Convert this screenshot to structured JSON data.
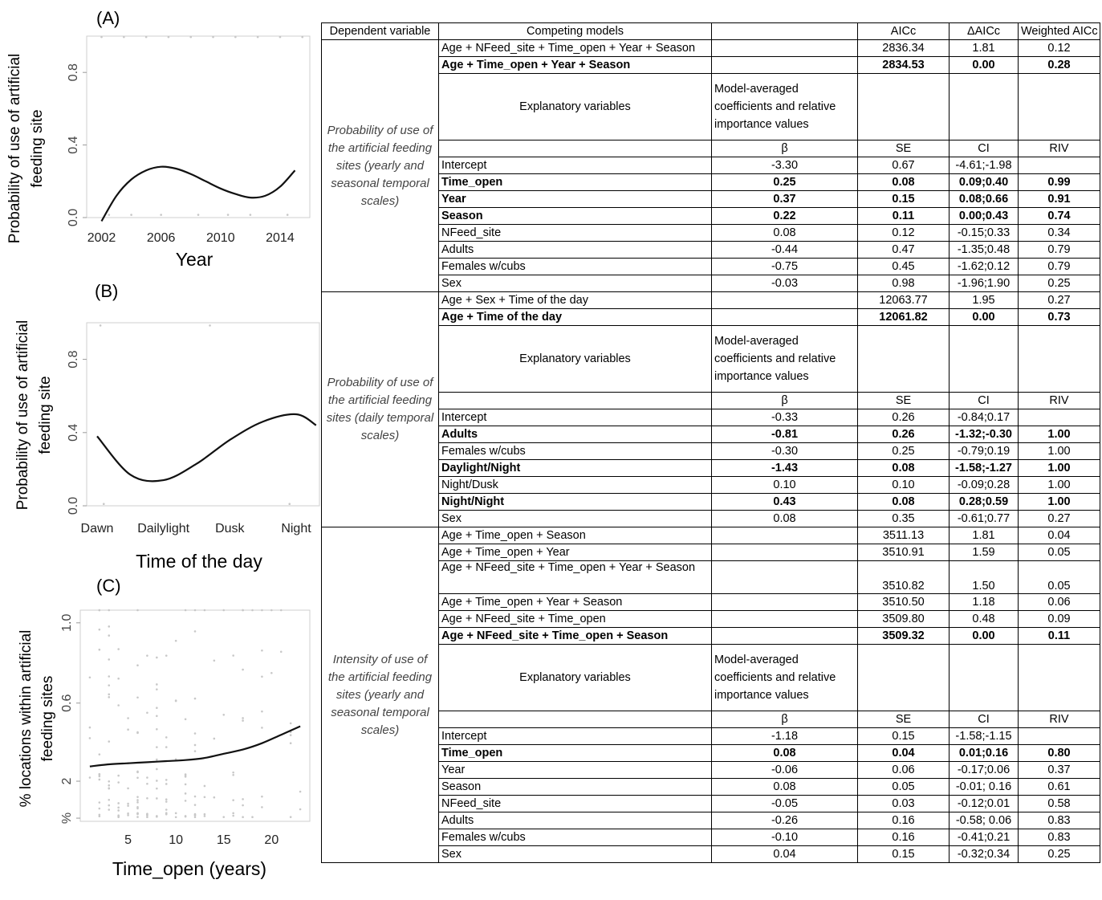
{
  "panels": [
    {
      "label": "(A)",
      "ylabel_lines": [
        "Probability of use of artificial",
        "feeding site"
      ],
      "xlabel": "Year",
      "xticks": [
        "2002",
        "2006",
        "2010",
        "2014"
      ],
      "yticks": [
        "0.0",
        "0.4",
        "0.8"
      ]
    },
    {
      "label": "(B)",
      "ylabel_lines": [
        "Probability of use of artificial",
        "feeding site"
      ],
      "xlabel": "Time of the day",
      "xticks": [
        "Dawn",
        "Dailylight",
        "Dusk",
        "Night"
      ],
      "yticks": [
        "0.0",
        "0.4",
        "0.8"
      ]
    },
    {
      "label": "(C)",
      "ylabel_lines": [
        "% locations within artificial",
        "feeding sites"
      ],
      "xlabel": "Time_open  (years)",
      "xticks": [
        "5",
        "10",
        "15",
        "20"
      ],
      "yticks": [
        "%",
        "2",
        "0.6",
        "1.0"
      ]
    }
  ],
  "chart_data": [
    {
      "type": "line",
      "title": "(A)",
      "xlabel": "Year",
      "ylabel": "Probability of use of artificial feeding site",
      "xlim": [
        2001,
        2016
      ],
      "ylim": [
        0.0,
        1.0
      ],
      "x": [
        2002,
        2003,
        2004,
        2005,
        2006,
        2007,
        2008,
        2009,
        2010,
        2011,
        2012,
        2013,
        2014,
        2015
      ],
      "series": [
        {
          "values": [
            -0.02,
            0.12,
            0.21,
            0.26,
            0.28,
            0.27,
            0.24,
            0.2,
            0.16,
            0.13,
            0.11,
            0.12,
            0.17,
            0.26
          ]
        }
      ]
    },
    {
      "type": "line",
      "title": "(B)",
      "xlabel": "Time of the day",
      "ylabel": "Probability of use of artificial feeding site",
      "categories": [
        "Dawn",
        "Dailylight",
        "Dusk",
        "Night"
      ],
      "ylim": [
        0.0,
        1.0
      ],
      "x": [
        1.0,
        1.5,
        2.0,
        2.5,
        3.0,
        3.5,
        4.0,
        4.3
      ],
      "series": [
        {
          "values": [
            0.38,
            0.17,
            0.14,
            0.23,
            0.36,
            0.46,
            0.5,
            0.44
          ]
        }
      ]
    },
    {
      "type": "line",
      "title": "(C)",
      "xlabel": "Time_open  (years)",
      "ylabel": "% locations within artificial feeding sites",
      "xlim": [
        0,
        24
      ],
      "ylim": [
        0.0,
        1.0
      ],
      "x": [
        1,
        3,
        5,
        7,
        9,
        11,
        13,
        15,
        17,
        19,
        21,
        23
      ],
      "series": [
        {
          "values": [
            0.26,
            0.27,
            0.275,
            0.28,
            0.285,
            0.29,
            0.3,
            0.32,
            0.34,
            0.37,
            0.41,
            0.45
          ]
        }
      ]
    }
  ],
  "table": {
    "header": [
      "Dependent variable",
      "Competing models",
      "",
      "AICc",
      "ΔAICc",
      "Weighted AICc"
    ],
    "sub_header_1": "Explanatory variables",
    "sub_header_2": "Model-averaged coefficients and relative importance values",
    "coef_header": [
      "β",
      "SE",
      "CI",
      "RIV"
    ],
    "groups": [
      {
        "dependent": "Probability of use of the artificial feeding sites (yearly and seasonal temporal scales)",
        "models": [
          {
            "name": "Age + NFeed_site + Time_open + Year + Season",
            "aicc": "2836.34",
            "daicc": "1.81",
            "w": "0.12",
            "bold": false,
            "tall": false
          },
          {
            "name": "Age + Time_open + Year + Season",
            "aicc": "2834.53",
            "daicc": "0.00",
            "w": "0.28",
            "bold": true,
            "tall": false
          }
        ],
        "coefs": [
          {
            "name": "Intercept",
            "beta": "-3.30",
            "se": "0.67",
            "ci": "-4.61;-1.98",
            "riv": "",
            "bold": false
          },
          {
            "name": "Time_open",
            "beta": "0.25",
            "se": "0.08",
            "ci": "0.09;0.40",
            "riv": "0.99",
            "bold": true
          },
          {
            "name": "Year",
            "beta": "0.37",
            "se": "0.15",
            "ci": "0.08;0.66",
            "riv": "0.91",
            "bold": true
          },
          {
            "name": "Season",
            "beta": "0.22",
            "se": "0.11",
            "ci": "0.00;0.43",
            "riv": "0.74",
            "bold": true
          },
          {
            "name": "NFeed_site",
            "beta": "0.08",
            "se": "0.12",
            "ci": "-0.15;0.33",
            "riv": "0.34",
            "bold": false
          },
          {
            "name": "Adults",
            "beta": "-0.44",
            "se": "0.47",
            "ci": "-1.35;0.48",
            "riv": "0.79",
            "bold": false
          },
          {
            "name": "Females w/cubs",
            "beta": "-0.75",
            "se": "0.45",
            "ci": "-1.62;0.12",
            "riv": "0.79",
            "bold": false
          },
          {
            "name": "Sex",
            "beta": "-0.03",
            "se": "0.98",
            "ci": "-1.96;1.90",
            "riv": "0.25",
            "bold": false
          }
        ]
      },
      {
        "dependent": "Probability of use of the artificial feeding sites (daily temporal scales)",
        "models": [
          {
            "name": "Age + Sex + Time of the day",
            "aicc": "12063.77",
            "daicc": "1.95",
            "w": "0.27",
            "bold": false,
            "tall": false
          },
          {
            "name": "Age + Time of the day",
            "aicc": "12061.82",
            "daicc": "0.00",
            "w": "0.73",
            "bold": true,
            "tall": false
          }
        ],
        "coefs": [
          {
            "name": "Intercept",
            "beta": "-0.33",
            "se": "0.26",
            "ci": "-0.84;0.17",
            "riv": "",
            "bold": false
          },
          {
            "name": "Adults",
            "beta": "-0.81",
            "se": "0.26",
            "ci": "-1.32;-0.30",
            "riv": "1.00",
            "bold": true
          },
          {
            "name": "Females w/cubs",
            "beta": "-0.30",
            "se": "0.25",
            "ci": "-0.79;0.19",
            "riv": "1.00",
            "bold": false
          },
          {
            "name": "Daylight/Night",
            "beta": "-1.43",
            "se": "0.08",
            "ci": "-1.58;-1.27",
            "riv": "1.00",
            "bold": true
          },
          {
            "name": "Night/Dusk",
            "beta": "0.10",
            "se": "0.10",
            "ci": "-0.09;0.28",
            "riv": "1.00",
            "bold": false
          },
          {
            "name": "Night/Night",
            "beta": "0.43",
            "se": "0.08",
            "ci": "0.28;0.59",
            "riv": "1.00",
            "bold": true
          },
          {
            "name": "Sex",
            "beta": "0.08",
            "se": "0.35",
            "ci": "-0.61;0.77",
            "riv": "0.27",
            "bold": false
          }
        ]
      },
      {
        "dependent": "Intensity of use of the artificial feeding sites (yearly and seasonal temporal scales)",
        "models": [
          {
            "name": "Age + Time_open + Season",
            "aicc": "3511.13",
            "daicc": "1.81",
            "w": "0.04",
            "bold": false,
            "tall": false
          },
          {
            "name": "Age + Time_open + Year",
            "aicc": "3510.91",
            "daicc": "1.59",
            "w": "0.05",
            "bold": false,
            "tall": false
          },
          {
            "name": "Age + NFeed_site + Time_open + Year + Season",
            "aicc": "3510.82",
            "daicc": "1.50",
            "w": "0.05",
            "bold": false,
            "tall": true
          },
          {
            "name": "Age + Time_open + Year + Season",
            "aicc": "3510.50",
            "daicc": "1.18",
            "w": "0.06",
            "bold": false,
            "tall": false
          },
          {
            "name": "Age + NFeed_site + Time_open",
            "aicc": "3509.80",
            "daicc": "0.48",
            "w": "0.09",
            "bold": false,
            "tall": false
          },
          {
            "name": "Age + NFeed_site + Time_open + Season",
            "aicc": "3509.32",
            "daicc": "0.00",
            "w": "0.11",
            "bold": true,
            "tall": false
          }
        ],
        "coefs": [
          {
            "name": "Intercept",
            "beta": "-1.18",
            "se": "0.15",
            "ci": "-1.58;-1.15",
            "riv": "",
            "bold": false
          },
          {
            "name": "Time_open",
            "beta": "0.08",
            "se": "0.04",
            "ci": "0.01;0.16",
            "riv": "0.80",
            "bold": true
          },
          {
            "name": "Year",
            "beta": "-0.06",
            "se": "0.06",
            "ci": "-0.17;0.06",
            "riv": "0.37",
            "bold": false
          },
          {
            "name": "Season",
            "beta": "0.08",
            "se": "0.05",
            "ci": "-0.01; 0.16",
            "riv": "0.61",
            "bold": false
          },
          {
            "name": "NFeed_site",
            "beta": "-0.05",
            "se": "0.03",
            "ci": "-0.12;0.01",
            "riv": "0.58",
            "bold": false
          },
          {
            "name": "Adults",
            "beta": "-0.26",
            "se": "0.16",
            "ci": "-0.58; 0.06",
            "riv": "0.83",
            "bold": false
          },
          {
            "name": "Females w/cubs",
            "beta": "-0.10",
            "se": "0.16",
            "ci": "-0.41;0.21",
            "riv": "0.83",
            "bold": false
          },
          {
            "name": "Sex",
            "beta": "0.04",
            "se": "0.15",
            "ci": "-0.32;0.34",
            "riv": "0.25",
            "bold": false
          }
        ]
      }
    ]
  }
}
